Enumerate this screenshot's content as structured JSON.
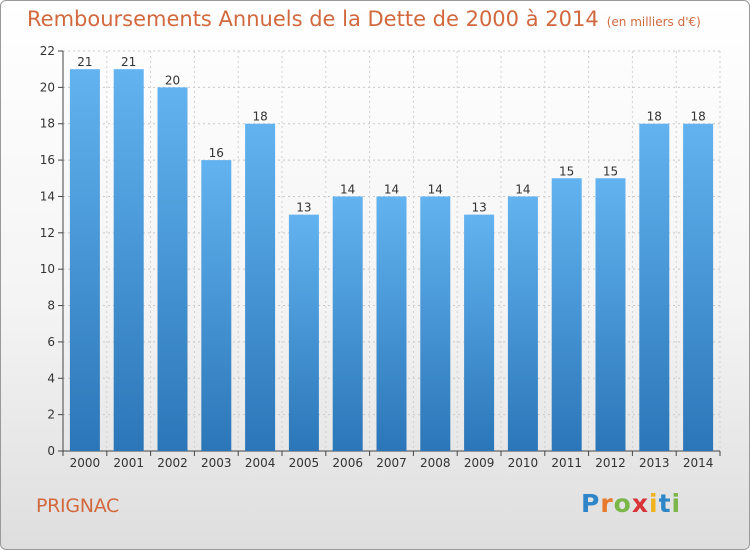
{
  "header": {
    "title": "Remboursements Annuels de la Dette de 2000 à 2014",
    "unit": "(en milliers d'€)"
  },
  "footer": {
    "commune": "PRIGNAC",
    "logo": "Proxiti"
  },
  "colors": {
    "title": "#d2693e",
    "bar_top": "#62b3f0",
    "bar_bottom": "#2b76b8"
  },
  "chart_data": {
    "type": "bar",
    "categories": [
      "2000",
      "2001",
      "2002",
      "2003",
      "2004",
      "2005",
      "2006",
      "2007",
      "2008",
      "2009",
      "2010",
      "2011",
      "2012",
      "2013",
      "2014"
    ],
    "values": [
      21,
      21,
      20,
      16,
      18,
      13,
      14,
      14,
      14,
      13,
      14,
      15,
      15,
      18,
      18
    ],
    "title": "Remboursements Annuels de la Dette de 2000 à 2014",
    "ylim": [
      0,
      22
    ],
    "yticks": [
      0,
      2,
      4,
      6,
      8,
      10,
      12,
      14,
      16,
      18,
      20,
      22
    ],
    "grid": true
  }
}
